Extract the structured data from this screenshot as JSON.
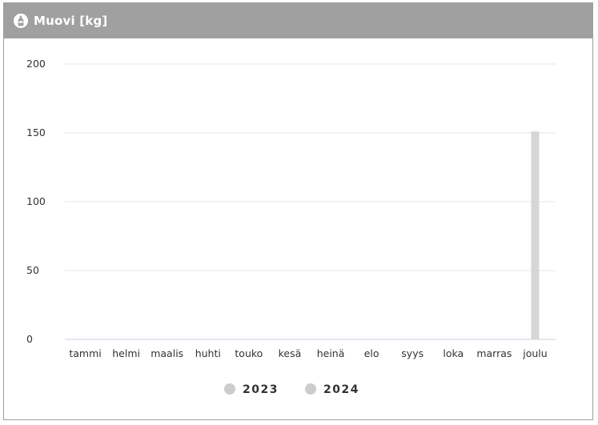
{
  "header": {
    "title": "Muovi [kg]",
    "icon": "bottle-icon",
    "background_color": "#a0a0a0"
  },
  "chart_data": {
    "type": "bar",
    "categories": [
      "tammi",
      "helmi",
      "maalis",
      "huhti",
      "touko",
      "kesä",
      "heinä",
      "elo",
      "syys",
      "loka",
      "marras",
      "joulu"
    ],
    "series": [
      {
        "name": "2023",
        "color": "#cccccc",
        "values": [
          0,
          0,
          0,
          0,
          0,
          0,
          0,
          0,
          0,
          0,
          0,
          0
        ]
      },
      {
        "name": "2024",
        "color": "#d6d6d6",
        "values": [
          0,
          0,
          0,
          0,
          0,
          0,
          0,
          0,
          0,
          0,
          0,
          151
        ]
      }
    ],
    "yticks": [
      0,
      50,
      100,
      150,
      200
    ],
    "ylim": [
      0,
      200
    ],
    "grid": true,
    "legend_position": "bottom-center"
  }
}
